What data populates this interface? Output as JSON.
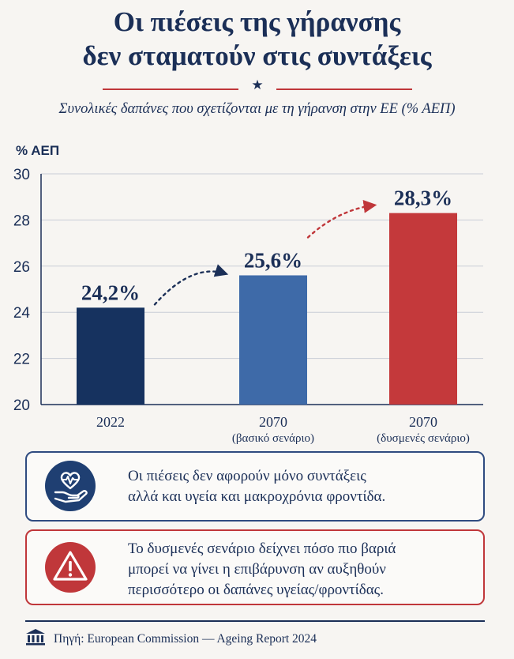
{
  "title": {
    "line1": "Οι πιέσεις της γήρανσης",
    "line2": "δεν σταματούν στις συντάξεις"
  },
  "subtitle": "Συνολικές δαπάνες που σχετίζονται με τη γήρανση στην ΕΕ (% ΑΕΠ)",
  "colors": {
    "navy": "#1b2f57",
    "mid_blue": "#3e6aa8",
    "red": "#c0373a"
  },
  "chart_data": {
    "type": "bar",
    "ylabel": "% ΑΕΠ",
    "ylim": [
      20,
      30
    ],
    "yticks": [
      "20",
      "22",
      "24",
      "26",
      "28",
      "30"
    ],
    "grid": true,
    "categories": [
      {
        "line1": "2022",
        "line2": ""
      },
      {
        "line1": "2070",
        "line2": "(βασικό σενάριο)"
      },
      {
        "line1": "2070",
        "line2": "(δυσμενές σενάριο)"
      }
    ],
    "values": [
      24.2,
      25.6,
      28.3
    ],
    "value_labels": [
      "24,2%",
      "25,6%",
      "28,3%"
    ],
    "bar_colors": [
      "#16325f",
      "#3e6aa8",
      "#c4393b"
    ]
  },
  "callouts": [
    {
      "icon": "heart-hand-icon",
      "line1": "Οι πιέσεις δεν αφορούν μόνο συντάξεις",
      "line2": "αλλά και υγεία και μακροχρόνια φροντίδα.",
      "line3": ""
    },
    {
      "icon": "warning-icon",
      "line1": "Το δυσμενές σενάριο δείχνει πόσο πιο βαριά",
      "line2": "μπορεί να γίνει η επιβάρυνση αν αυξηθούν",
      "line3": "περισσότερο οι δαπάνες υγείας/φροντίδας."
    }
  ],
  "source": "Πηγή: European Commission — Ageing Report 2024"
}
